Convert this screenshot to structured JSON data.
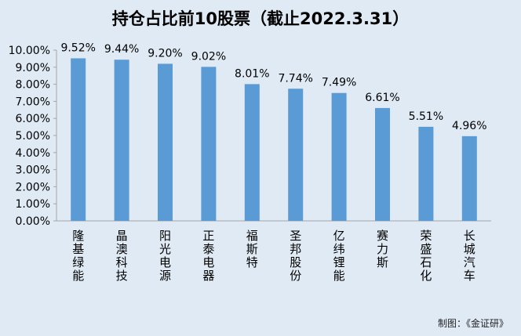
{
  "title": "持仓占比前10股票（截止2022.3.31）",
  "credit": "制图：《金证研》",
  "colors": {
    "background": "#dfeaf4",
    "bar": "#5b9bd5",
    "axis": "#a6a6a6",
    "text": "#000000"
  },
  "chart_data": {
    "type": "bar",
    "title": "持仓占比前10股票（截止2022.3.31）",
    "categories": [
      "隆基绿能",
      "晶澳科技",
      "阳光电源",
      "正泰电器",
      "福斯特",
      "圣邦股份",
      "亿纬锂能",
      "赛力斯",
      "荣盛石化",
      "长城汽车"
    ],
    "values": [
      9.52,
      9.44,
      9.2,
      9.02,
      8.01,
      7.74,
      7.49,
      6.61,
      5.51,
      4.96
    ],
    "data_labels": [
      "9.52%",
      "9.44%",
      "9.20%",
      "9.02%",
      "8.01%",
      "7.74%",
      "7.49%",
      "6.61%",
      "5.51%",
      "4.96%"
    ],
    "y_ticks": [
      "0.00%",
      "1.00%",
      "2.00%",
      "3.00%",
      "4.00%",
      "5.00%",
      "6.00%",
      "7.00%",
      "8.00%",
      "9.00%",
      "10.00%"
    ],
    "ylim": [
      0,
      10
    ],
    "xlabel": "",
    "ylabel": "",
    "grid": false,
    "legend": "none"
  }
}
